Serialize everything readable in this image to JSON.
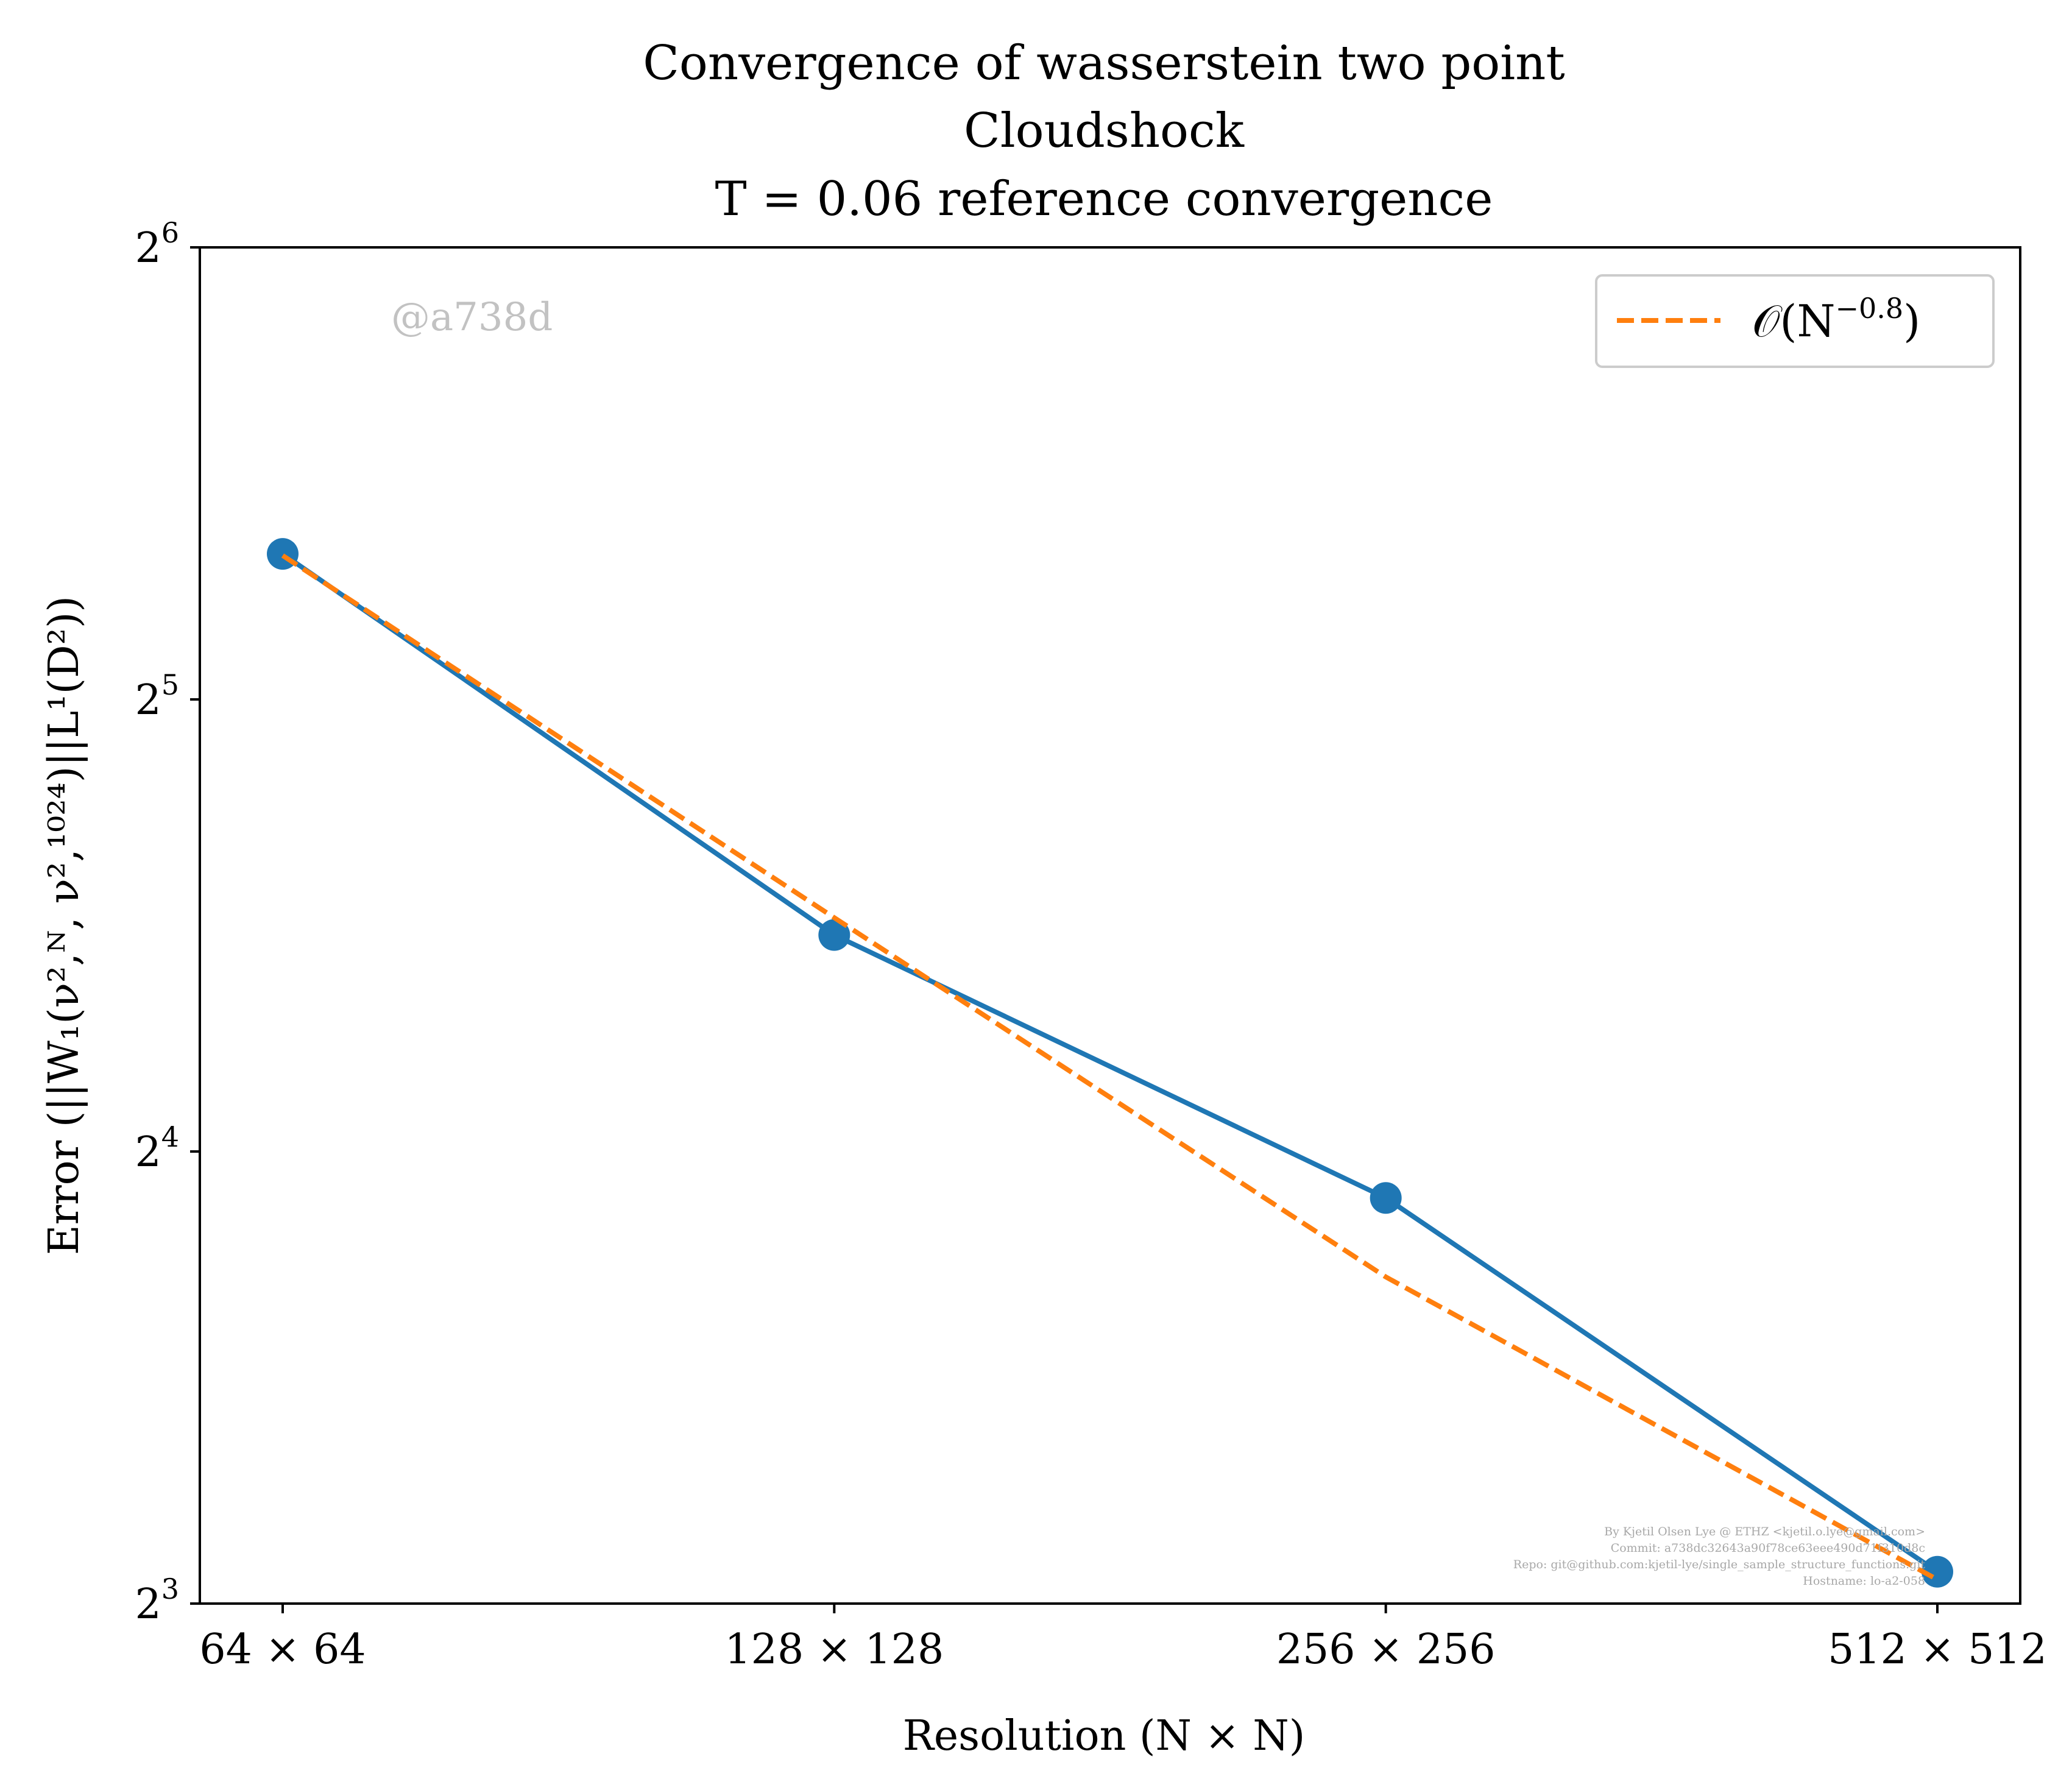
{
  "chart_data": {
    "type": "line",
    "title_lines": [
      "Convergence of wasserstein two point",
      "Cloudshock",
      "T = 0.06 reference convergence"
    ],
    "xlabel": "Resolution (N × N)",
    "ylabel": "Error (||W₁(ν²,ᴺ, ν²,¹⁰²⁴)||L¹(D²))",
    "x_scale": "log2",
    "y_scale": "log2",
    "categories": [
      "64 × 64",
      "128 × 128",
      "256 × 256",
      "512 × 512"
    ],
    "x": [
      64,
      128,
      256,
      512
    ],
    "ylim": [
      8,
      64
    ],
    "y_ticks": [
      {
        "value": 8,
        "base": "2",
        "exp": "3"
      },
      {
        "value": 16,
        "base": "2",
        "exp": "4"
      },
      {
        "value": 32,
        "base": "2",
        "exp": "5"
      },
      {
        "value": 64,
        "base": "2",
        "exp": "6"
      }
    ],
    "series": [
      {
        "values": [
          40.0,
          22.3,
          14.9,
          8.4
        ],
        "color": "#1f77b4",
        "style": "solid",
        "marker": "circle"
      },
      {
        "name": "O(N^{-0.8})",
        "values": [
          39.9,
          22.9,
          13.2,
          8.3
        ],
        "color": "#ff7f0e",
        "style": "dashed",
        "marker": "none"
      }
    ],
    "legend": {
      "placement": "top-right",
      "label_main": "𝒪(N",
      "label_exp": "−0.8",
      "label_close": ")"
    },
    "grid": false,
    "watermark": "@a738d",
    "credits": [
      "By Kjetil Olsen Lye @ ETHZ <kjetil.o.lye@gmail.com>",
      "Commit: a738dc32643a90f78ce63eee490d71f310d8c",
      "Repo: git@github.com:kjetil-lye/single_sample_structure_functions.git",
      "Hostname: lo-a2-058"
    ]
  }
}
